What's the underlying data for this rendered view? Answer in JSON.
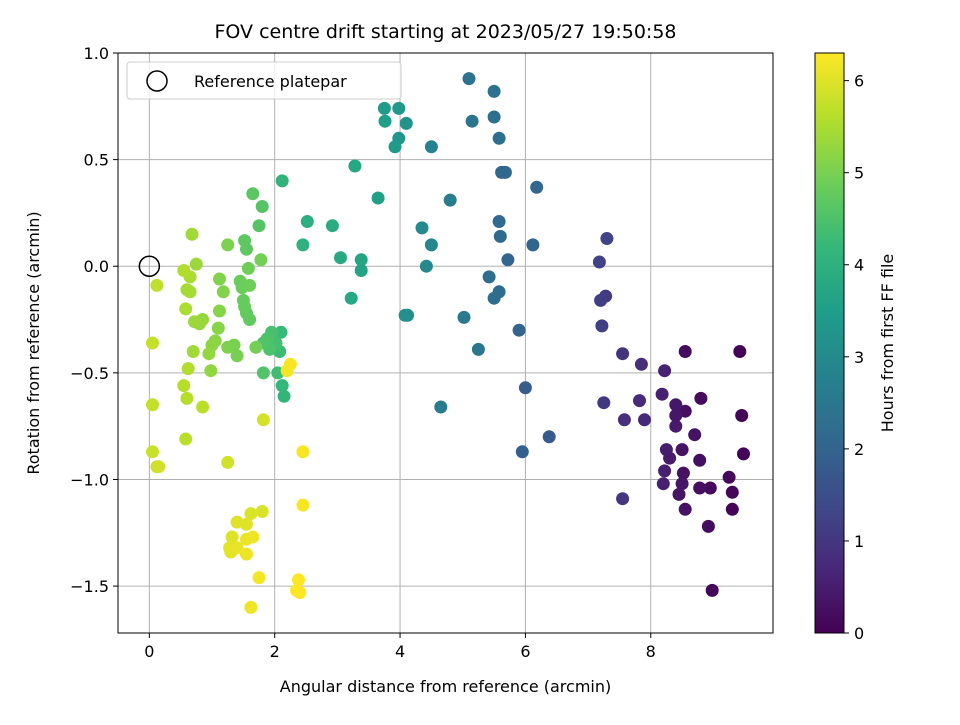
{
  "chart_data": {
    "type": "scatter",
    "title": "FOV centre drift starting at 2023/05/27 19:50:58",
    "xlabel": "Angular distance from reference (arcmin)",
    "ylabel": "Rotation from reference (arcmin)",
    "colorbar_label": "Hours from first FF file",
    "xlim": [
      -0.5,
      9.95
    ],
    "ylim": [
      -1.72,
      1.0
    ],
    "xticks": [
      "0",
      "2",
      "4",
      "6",
      "8"
    ],
    "xtick_values": [
      0,
      2,
      4,
      6,
      8
    ],
    "yticks": [
      "1.0",
      "0.5",
      "0.0",
      "−0.5",
      "−1.0",
      "−1.5"
    ],
    "ytick_values": [
      1.0,
      0.5,
      0.0,
      -0.5,
      -1.0,
      -1.5
    ],
    "colorbar_ticks": [
      "0",
      "1",
      "2",
      "3",
      "4",
      "5",
      "6"
    ],
    "colorbar_tick_values": [
      0,
      1,
      2,
      3,
      4,
      5,
      6
    ],
    "colorbar_range": [
      0,
      6.3
    ],
    "colormap": "viridis",
    "grid": true,
    "legend": {
      "placement": "top-left",
      "entries": [
        "Reference platepar"
      ]
    },
    "reference_point": {
      "x": 0.0,
      "y": 0.0
    },
    "points": [
      [
        9.42,
        -0.4,
        0.05
      ],
      [
        9.45,
        -0.7,
        0.07
      ],
      [
        9.48,
        -0.88,
        0.05
      ],
      [
        9.25,
        -0.99,
        0.12
      ],
      [
        9.3,
        -1.06,
        0.1
      ],
      [
        9.3,
        -1.14,
        0.08
      ],
      [
        8.98,
        -1.52,
        0.1
      ],
      [
        8.95,
        -1.04,
        0.15
      ],
      [
        8.92,
        -1.22,
        0.2
      ],
      [
        8.78,
        -1.04,
        0.25
      ],
      [
        8.78,
        -0.91,
        0.25
      ],
      [
        8.8,
        -0.62,
        0.2
      ],
      [
        8.7,
        -0.79,
        0.3
      ],
      [
        8.55,
        -0.4,
        0.2
      ],
      [
        8.55,
        -0.68,
        0.25
      ],
      [
        8.5,
        -0.86,
        0.3
      ],
      [
        8.52,
        -0.97,
        0.3
      ],
      [
        8.5,
        -1.02,
        0.35
      ],
      [
        8.55,
        -1.14,
        0.3
      ],
      [
        8.45,
        -1.07,
        0.35
      ],
      [
        8.4,
        -0.65,
        0.4
      ],
      [
        8.4,
        -0.75,
        0.45
      ],
      [
        8.3,
        -0.9,
        0.45
      ],
      [
        8.25,
        -0.86,
        0.5
      ],
      [
        8.22,
        -0.96,
        0.55
      ],
      [
        8.2,
        -1.02,
        0.55
      ],
      [
        8.22,
        -0.49,
        0.6
      ],
      [
        8.18,
        -0.6,
        0.55
      ],
      [
        8.4,
        -0.7,
        0.4
      ],
      [
        7.9,
        -0.72,
        0.7
      ],
      [
        7.82,
        -0.63,
        0.75
      ],
      [
        7.85,
        -0.46,
        0.8
      ],
      [
        7.58,
        -0.72,
        0.85
      ],
      [
        7.55,
        -0.41,
        0.95
      ],
      [
        7.55,
        -1.09,
        1.0
      ],
      [
        7.25,
        -0.64,
        1.05
      ],
      [
        7.28,
        -0.14,
        1.1
      ],
      [
        7.2,
        -0.16,
        1.15
      ],
      [
        7.22,
        -0.28,
        1.2
      ],
      [
        7.18,
        0.02,
        1.25
      ],
      [
        7.3,
        0.13,
        1.3
      ],
      [
        6.38,
        -0.8,
        1.8
      ],
      [
        6.0,
        -0.57,
        1.85
      ],
      [
        5.95,
        -0.87,
        1.9
      ],
      [
        5.9,
        -0.3,
        2.0
      ],
      [
        6.12,
        0.1,
        2.0
      ],
      [
        6.18,
        0.37,
        2.05
      ],
      [
        5.72,
        0.03,
        2.05
      ],
      [
        5.62,
        0.44,
        2.1
      ],
      [
        5.68,
        0.44,
        2.1
      ],
      [
        5.6,
        0.14,
        2.15
      ],
      [
        5.58,
        0.21,
        2.15
      ],
      [
        5.58,
        -0.12,
        2.2
      ],
      [
        5.5,
        -0.15,
        2.25
      ],
      [
        5.42,
        -0.05,
        2.25
      ],
      [
        5.58,
        0.6,
        2.3
      ],
      [
        5.5,
        0.7,
        2.3
      ],
      [
        5.5,
        0.82,
        2.35
      ],
      [
        5.1,
        0.88,
        2.4
      ],
      [
        5.15,
        0.68,
        2.45
      ],
      [
        5.25,
        -0.39,
        2.5
      ],
      [
        5.02,
        -0.24,
        2.55
      ],
      [
        4.65,
        -0.66,
        2.6
      ],
      [
        4.8,
        0.31,
        2.7
      ],
      [
        4.5,
        0.56,
        2.8
      ],
      [
        4.5,
        0.1,
        2.9
      ],
      [
        4.42,
        0.0,
        2.95
      ],
      [
        4.35,
        0.18,
        3.0
      ],
      [
        4.12,
        -0.23,
        3.1
      ],
      [
        4.08,
        -0.23,
        3.15
      ],
      [
        4.1,
        0.67,
        3.2
      ],
      [
        3.98,
        0.6,
        3.3
      ],
      [
        3.98,
        0.74,
        3.35
      ],
      [
        3.92,
        0.56,
        3.4
      ],
      [
        3.75,
        0.74,
        3.45
      ],
      [
        3.76,
        0.68,
        3.5
      ],
      [
        3.65,
        0.32,
        3.55
      ],
      [
        3.38,
        -0.02,
        3.65
      ],
      [
        3.38,
        0.03,
        3.7
      ],
      [
        3.22,
        -0.15,
        3.75
      ],
      [
        3.28,
        0.47,
        3.75
      ],
      [
        3.05,
        0.04,
        3.8
      ],
      [
        2.92,
        0.19,
        3.85
      ],
      [
        2.52,
        0.21,
        3.95
      ],
      [
        2.45,
        0.1,
        4.0
      ],
      [
        2.12,
        0.4,
        4.1
      ],
      [
        2.15,
        -0.61,
        4.15
      ],
      [
        2.12,
        -0.56,
        4.2
      ],
      [
        2.1,
        -0.31,
        4.25
      ],
      [
        2.08,
        -0.4,
        4.3
      ],
      [
        2.05,
        -0.5,
        4.35
      ],
      [
        2.02,
        -0.36,
        4.4
      ],
      [
        1.95,
        -0.31,
        4.45
      ],
      [
        1.92,
        -0.39,
        4.5
      ],
      [
        1.88,
        -0.34,
        4.5
      ],
      [
        1.82,
        -0.5,
        4.55
      ],
      [
        1.82,
        -0.36,
        4.55
      ],
      [
        1.75,
        0.19,
        4.6
      ],
      [
        1.8,
        0.28,
        4.6
      ],
      [
        1.65,
        0.34,
        4.65
      ],
      [
        1.55,
        0.08,
        4.7
      ],
      [
        1.52,
        0.12,
        4.7
      ],
      [
        1.6,
        -0.25,
        4.75
      ],
      [
        1.55,
        -0.22,
        4.75
      ],
      [
        1.52,
        -0.19,
        4.8
      ],
      [
        1.5,
        -0.16,
        4.8
      ],
      [
        1.48,
        -0.1,
        4.85
      ],
      [
        1.45,
        -0.07,
        4.85
      ],
      [
        1.58,
        -0.01,
        4.9
      ],
      [
        1.6,
        -0.09,
        4.9
      ],
      [
        1.78,
        0.03,
        4.95
      ],
      [
        1.7,
        -0.38,
        4.95
      ],
      [
        1.4,
        -0.42,
        5.0
      ],
      [
        1.35,
        -0.37,
        5.0
      ],
      [
        1.25,
        -0.38,
        5.05
      ],
      [
        1.25,
        0.1,
        5.05
      ],
      [
        1.12,
        -0.06,
        5.1
      ],
      [
        1.18,
        -0.12,
        5.1
      ],
      [
        1.12,
        -0.21,
        5.15
      ],
      [
        1.1,
        -0.29,
        5.15
      ],
      [
        1.05,
        -0.35,
        5.2
      ],
      [
        1.0,
        -0.37,
        5.2
      ],
      [
        0.98,
        -0.49,
        5.25
      ],
      [
        0.95,
        -0.41,
        5.25
      ],
      [
        0.85,
        -0.25,
        5.3
      ],
      [
        0.8,
        -0.27,
        5.3
      ],
      [
        0.72,
        -0.26,
        5.35
      ],
      [
        0.75,
        0.01,
        5.35
      ],
      [
        0.68,
        0.15,
        5.4
      ],
      [
        0.7,
        -0.4,
        5.4
      ],
      [
        0.65,
        -0.12,
        5.45
      ],
      [
        0.6,
        -0.11,
        5.45
      ],
      [
        0.65,
        -0.05,
        5.5
      ],
      [
        0.58,
        -0.2,
        5.5
      ],
      [
        0.55,
        -0.02,
        5.55
      ],
      [
        0.62,
        -0.48,
        5.55
      ],
      [
        0.6,
        -0.62,
        5.6
      ],
      [
        0.55,
        -0.56,
        5.6
      ],
      [
        0.85,
        -0.66,
        5.65
      ],
      [
        0.58,
        -0.81,
        5.65
      ],
      [
        0.12,
        -0.09,
        5.7
      ],
      [
        0.05,
        -0.36,
        5.75
      ],
      [
        0.05,
        -0.65,
        5.75
      ],
      [
        0.05,
        -0.87,
        5.8
      ],
      [
        0.12,
        -0.94,
        5.8
      ],
      [
        0.15,
        -0.94,
        5.85
      ],
      [
        1.25,
        -0.92,
        5.85
      ],
      [
        1.82,
        -0.72,
        5.9
      ],
      [
        1.8,
        -1.15,
        5.95
      ],
      [
        1.62,
        -1.16,
        5.95
      ],
      [
        1.55,
        -1.21,
        6.0
      ],
      [
        1.4,
        -1.2,
        6.0
      ],
      [
        1.32,
        -1.27,
        6.0
      ],
      [
        1.28,
        -1.32,
        6.05
      ],
      [
        1.3,
        -1.34,
        6.05
      ],
      [
        1.4,
        -1.32,
        6.1
      ],
      [
        1.55,
        -1.28,
        6.1
      ],
      [
        1.65,
        -1.27,
        6.15
      ],
      [
        1.55,
        -1.35,
        6.15
      ],
      [
        1.62,
        -1.6,
        6.15
      ],
      [
        1.75,
        -1.46,
        6.2
      ],
      [
        2.2,
        -0.49,
        6.2
      ],
      [
        2.25,
        -0.46,
        6.25
      ],
      [
        2.45,
        -0.87,
        6.25
      ],
      [
        2.45,
        -1.12,
        6.25
      ],
      [
        2.38,
        -1.47,
        6.3
      ],
      [
        2.35,
        -1.52,
        6.3
      ],
      [
        2.4,
        -1.53,
        6.3
      ]
    ]
  }
}
